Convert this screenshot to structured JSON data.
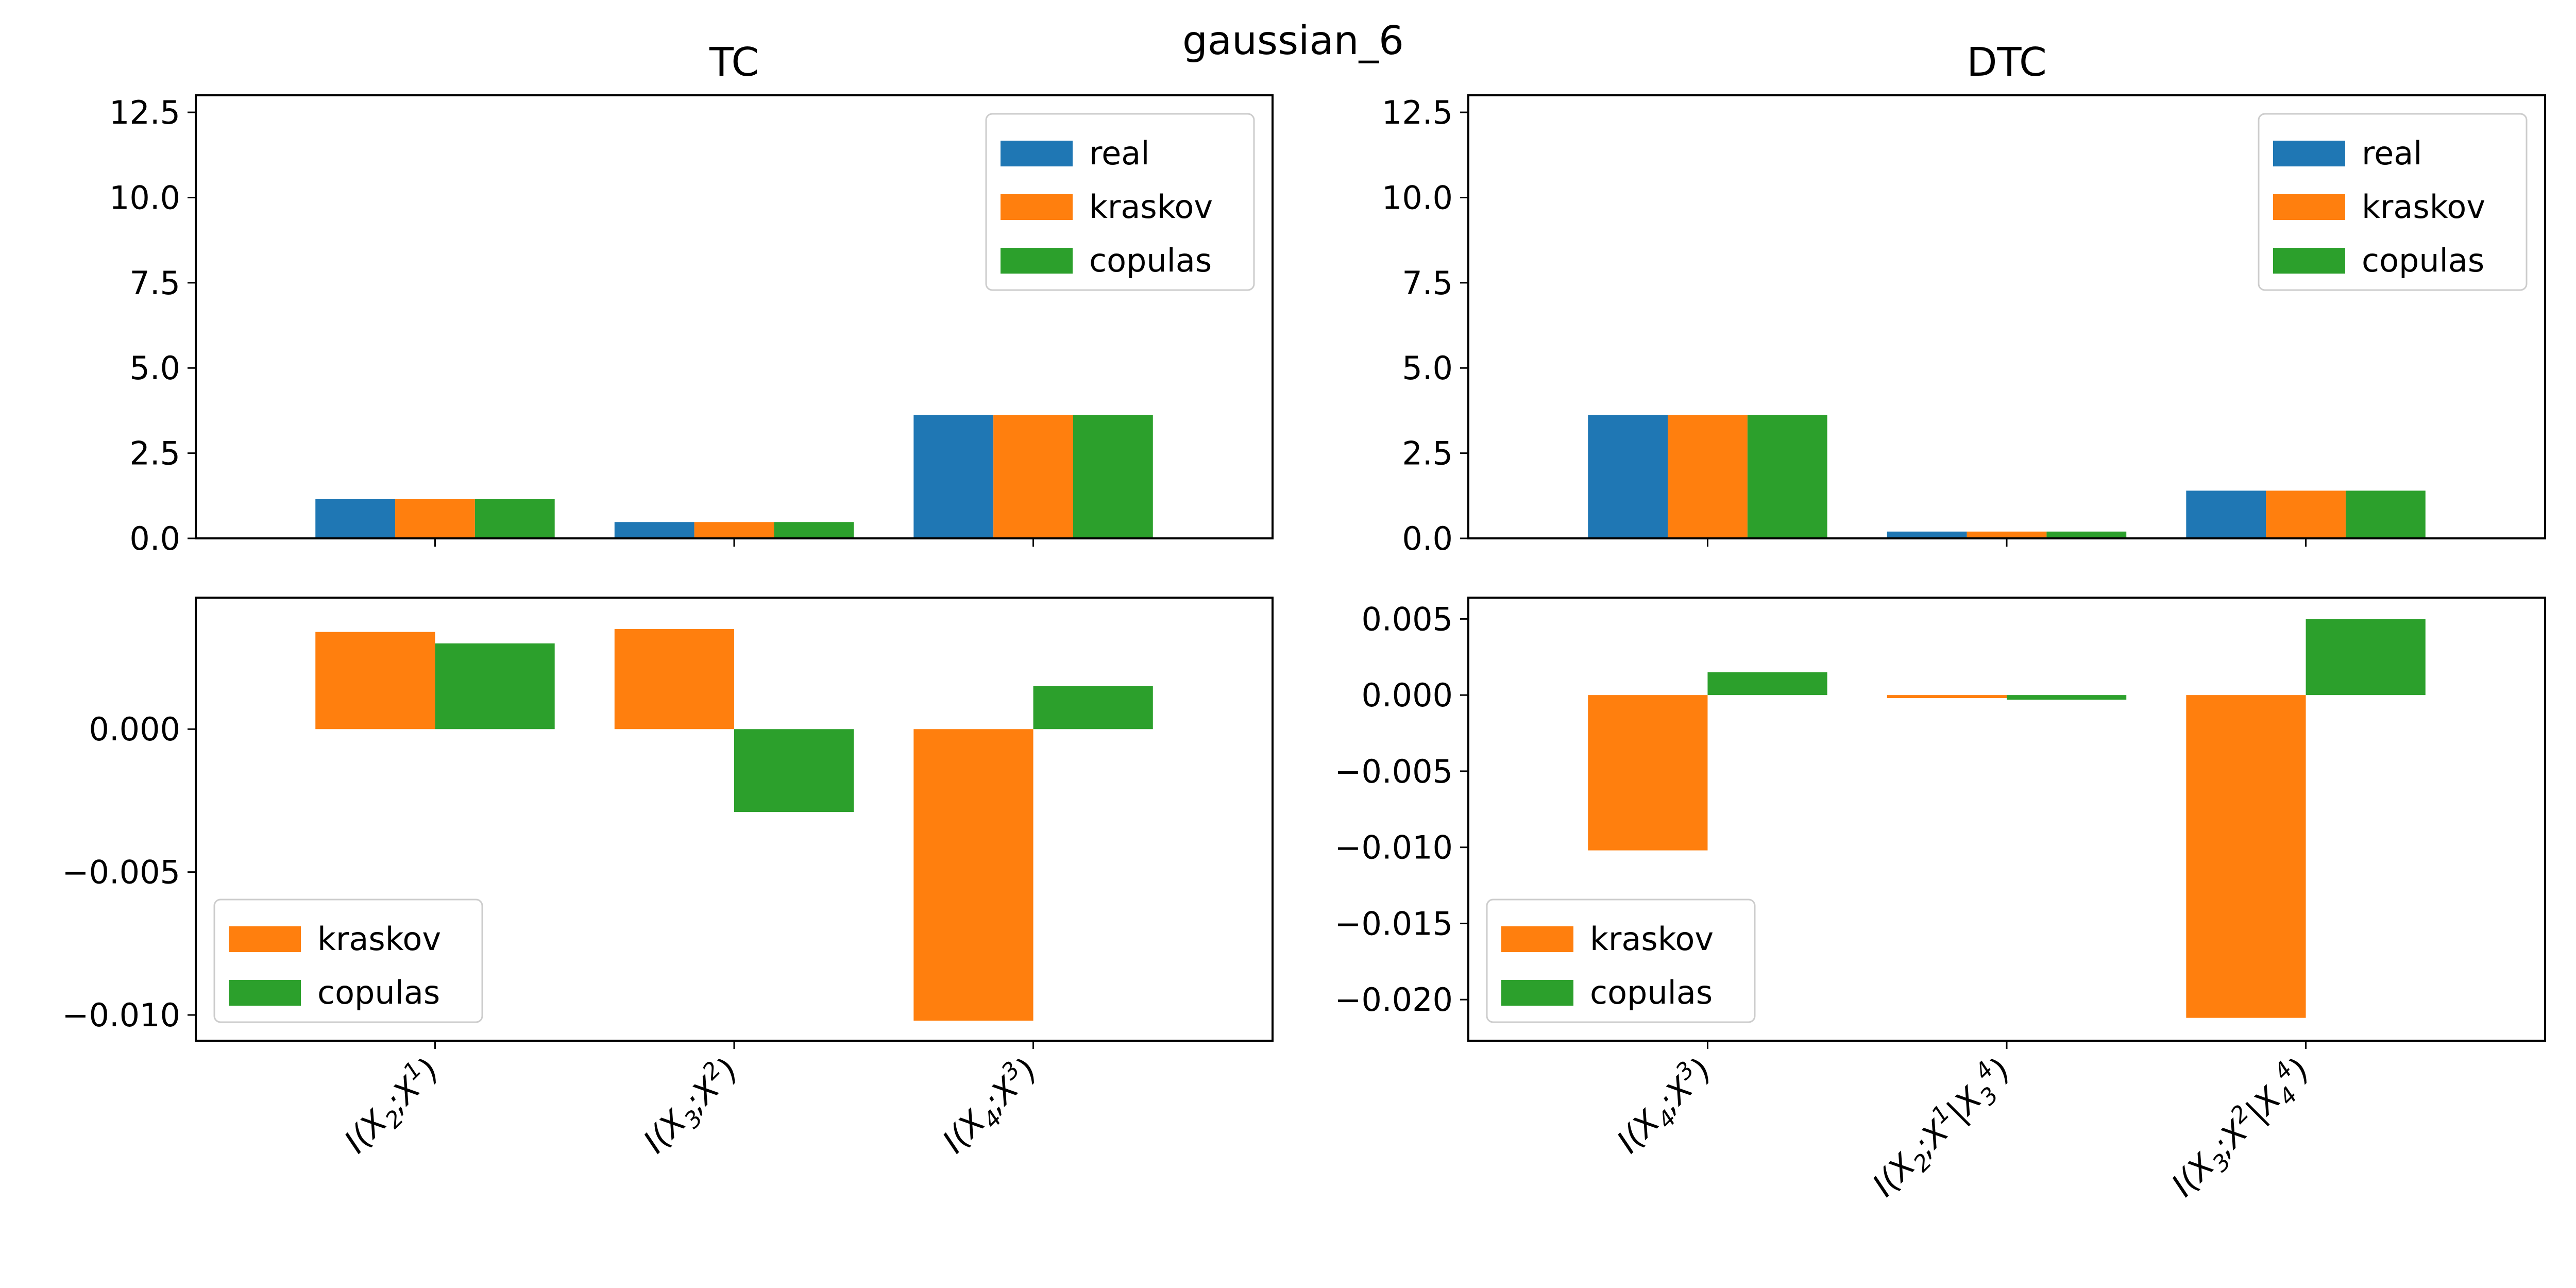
{
  "figure": {
    "title": "gaussian_6"
  },
  "chart_data": [
    {
      "id": "tc-top",
      "type": "bar",
      "title": "TC",
      "categories": [
        "I(X_2;X^1)",
        "I(X_3;X^2)",
        "I(X_4;X^3)"
      ],
      "series": [
        {
          "name": "real",
          "values": [
            1.15,
            0.48,
            3.62
          ]
        },
        {
          "name": "kraskov",
          "values": [
            1.15,
            0.48,
            3.62
          ]
        },
        {
          "name": "copulas",
          "values": [
            1.15,
            0.48,
            3.62
          ]
        }
      ],
      "ylim": [
        0,
        13.0
      ],
      "yticks": [
        0.0,
        2.5,
        5.0,
        7.5,
        10.0,
        12.5
      ],
      "ytick_labels": [
        "0.0",
        "2.5",
        "5.0",
        "7.5",
        "10.0",
        "12.5"
      ],
      "show_xtick_labels": false,
      "legend": "top-right"
    },
    {
      "id": "dtc-top",
      "type": "bar",
      "title": "DTC",
      "categories": [
        "I(X_4;X^3)",
        "I(X_2;X^1|X_3^4)",
        "I(X_3;X^2|X_4^4)"
      ],
      "series": [
        {
          "name": "real",
          "values": [
            3.62,
            0.2,
            1.4
          ]
        },
        {
          "name": "kraskov",
          "values": [
            3.62,
            0.2,
            1.4
          ]
        },
        {
          "name": "copulas",
          "values": [
            3.62,
            0.2,
            1.4
          ]
        }
      ],
      "ylim": [
        0,
        13.0
      ],
      "yticks": [
        0.0,
        2.5,
        5.0,
        7.5,
        10.0,
        12.5
      ],
      "ytick_labels": [
        "0.0",
        "2.5",
        "5.0",
        "7.5",
        "10.0",
        "12.5"
      ],
      "show_xtick_labels": false,
      "legend": "top-right"
    },
    {
      "id": "tc-bottom",
      "type": "bar",
      "categories": [
        "I(X_2;X^1)",
        "I(X_3;X^2)",
        "I(X_4;X^3)"
      ],
      "series": [
        {
          "name": "kraskov",
          "values": [
            0.0034,
            0.0035,
            -0.0102
          ]
        },
        {
          "name": "copulas",
          "values": [
            0.003,
            -0.0029,
            0.0015
          ]
        }
      ],
      "ylim": [
        -0.0109,
        0.0046
      ],
      "yticks": [
        -0.01,
        -0.005,
        0.0
      ],
      "ytick_labels": [
        "−0.010",
        "−0.005",
        "0.000"
      ],
      "show_xtick_labels": true,
      "legend": "bottom-left"
    },
    {
      "id": "dtc-bottom",
      "type": "bar",
      "categories": [
        "I(X_4;X^3)",
        "I(X_2;X^1|X_3^4)",
        "I(X_3;X^2|X_4^4)"
      ],
      "series": [
        {
          "name": "kraskov",
          "values": [
            -0.0102,
            -0.0002,
            -0.0212
          ]
        },
        {
          "name": "copulas",
          "values": [
            0.0015,
            -0.0003,
            0.005
          ]
        }
      ],
      "ylim": [
        -0.0227,
        0.0064
      ],
      "yticks": [
        -0.02,
        -0.015,
        -0.01,
        -0.005,
        0.0,
        0.005
      ],
      "ytick_labels": [
        "−0.020",
        "−0.015",
        "−0.010",
        "−0.005",
        "0.000",
        "0.005"
      ],
      "show_xtick_labels": true,
      "legend": "bottom-left"
    }
  ],
  "colors": {
    "real": "#1f77b4",
    "kraskov": "#ff7f0e",
    "copulas": "#2ca02c"
  }
}
